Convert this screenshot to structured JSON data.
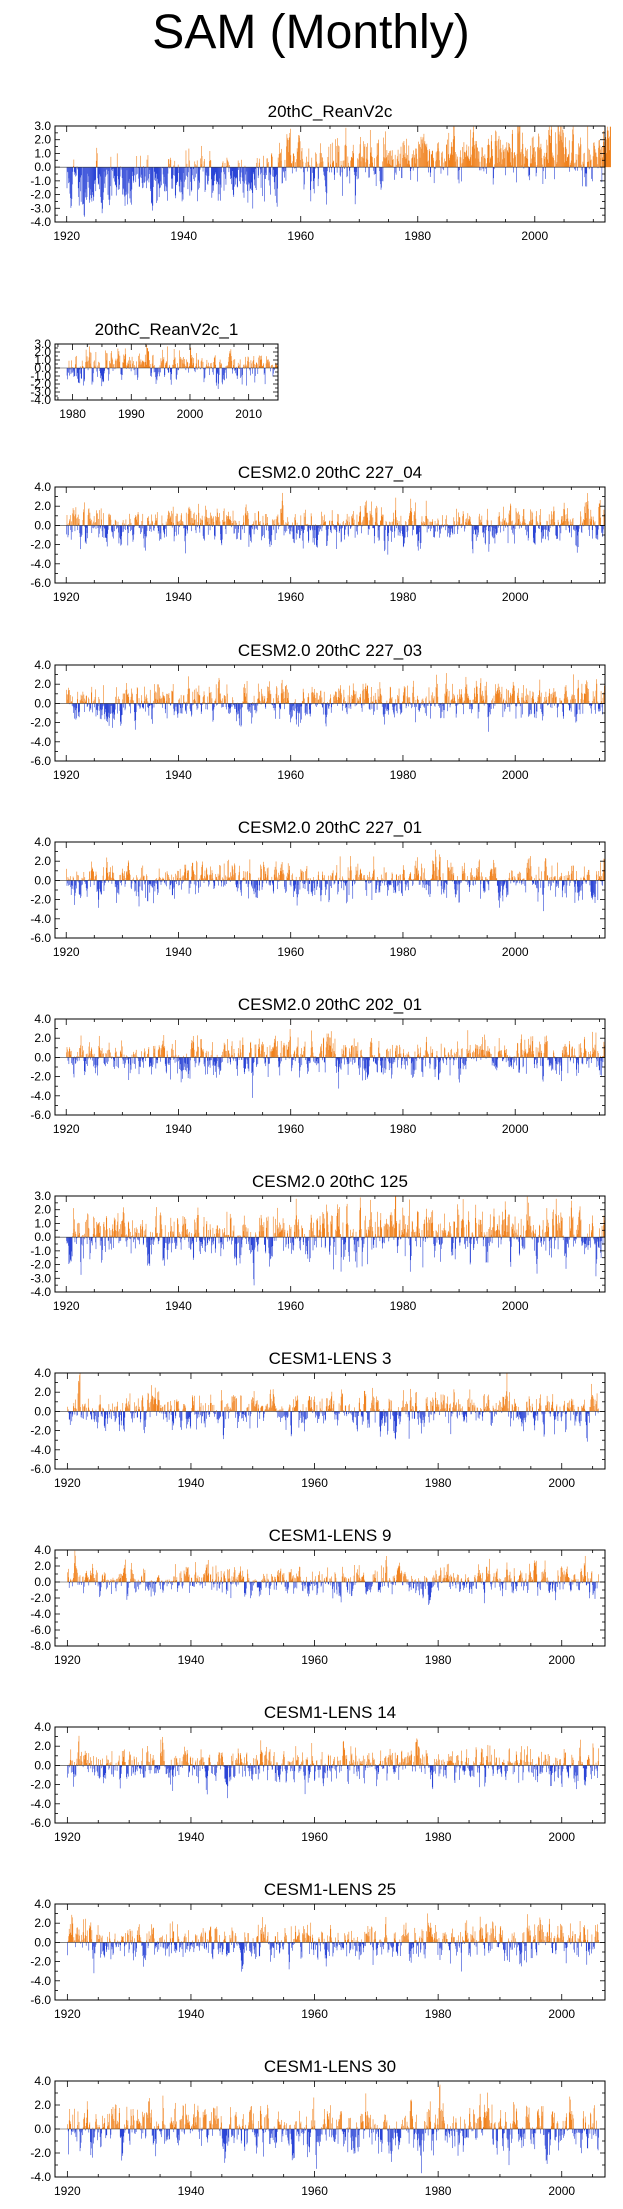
{
  "figure": {
    "title": "SAM (Monthly)"
  },
  "colors": {
    "positive": "#f0821e",
    "negative": "#2a44d6",
    "frame": "#000000"
  },
  "chart_data": [
    {
      "type": "bar",
      "title": "20thC_ReanV2c",
      "x_start": 1920,
      "x_end": 2012,
      "xticks": [
        1920,
        1940,
        1960,
        1980,
        2000
      ],
      "yticks": [
        3.0,
        2.0,
        1.0,
        0.0,
        -1.0,
        -2.0,
        -3.0,
        -4.0
      ],
      "ylim": [
        -4.0,
        3.0
      ],
      "pattern": "mostly negative (about -1 to -3) before 1955, mixed 1955-1975, mostly positive (about +1 to +2.5) after 1975",
      "trend": [
        [
          1920,
          -1.3
        ],
        [
          1935,
          -1.0
        ],
        [
          1950,
          -0.6
        ],
        [
          1958,
          0.2
        ],
        [
          1970,
          0.4
        ],
        [
          1980,
          0.8
        ],
        [
          1995,
          1.2
        ],
        [
          2012,
          1.1
        ]
      ],
      "seed": 11
    },
    {
      "type": "bar",
      "title": "20thC_ReanV2c_1",
      "x_start": 1979,
      "x_end": 2014,
      "xticks": [
        1980,
        1990,
        2000,
        2010
      ],
      "yticks": [
        3.0,
        2.0,
        1.0,
        0.0,
        -1.0,
        -2.0,
        -3.0,
        -4.0
      ],
      "ylim": [
        -4.0,
        3.0
      ],
      "pattern": "alternating positive and negative anomalies",
      "trend": [
        [
          1979,
          0.0
        ],
        [
          2014,
          0.2
        ]
      ],
      "seed": 23
    },
    {
      "type": "bar",
      "title": "CESM2.0 20thC 227_04",
      "x_start": 1920,
      "x_end": 2015,
      "xticks": [
        1920,
        1940,
        1960,
        1980,
        2000
      ],
      "yticks": [
        4.0,
        2.0,
        0.0,
        -2.0,
        -4.0,
        -6.0
      ],
      "ylim": [
        -6.0,
        4.0
      ],
      "pattern": "noisy anomalies around zero, largest negative near 1958 (about -5.5)",
      "trend": [
        [
          1920,
          0.0
        ],
        [
          2015,
          0.2
        ]
      ],
      "seed": 37
    },
    {
      "type": "bar",
      "title": "CESM2.0 20thC 227_03",
      "x_start": 1920,
      "x_end": 2015,
      "xticks": [
        1920,
        1940,
        1960,
        1980,
        2000
      ],
      "yticks": [
        4.0,
        2.0,
        0.0,
        -2.0,
        -4.0,
        -6.0
      ],
      "ylim": [
        -6.0,
        4.0
      ],
      "pattern": "noisy anomalies around zero, slightly more positive after 2000",
      "trend": [
        [
          1920,
          0.0
        ],
        [
          2015,
          0.3
        ]
      ],
      "seed": 41
    },
    {
      "type": "bar",
      "title": "CESM2.0 20thC 227_01",
      "x_start": 1920,
      "x_end": 2015,
      "xticks": [
        1920,
        1940,
        1960,
        1980,
        2000
      ],
      "yticks": [
        4.0,
        2.0,
        0.0,
        -2.0,
        -4.0,
        -6.0
      ],
      "ylim": [
        -6.0,
        4.0
      ],
      "pattern": "noisy anomalies around zero",
      "trend": [
        [
          1920,
          0.0
        ],
        [
          2015,
          0.1
        ]
      ],
      "seed": 53
    },
    {
      "type": "bar",
      "title": "CESM2.0 20thC 202_01",
      "x_start": 1920,
      "x_end": 2015,
      "xticks": [
        1920,
        1940,
        1960,
        1980,
        2000
      ],
      "yticks": [
        4.0,
        2.0,
        0.0,
        -2.0,
        -4.0,
        -6.0
      ],
      "ylim": [
        -6.0,
        4.0
      ],
      "pattern": "noisy anomalies around zero, negatives to about -4",
      "trend": [
        [
          1920,
          0.0
        ],
        [
          2015,
          0.1
        ]
      ],
      "seed": 61
    },
    {
      "type": "bar",
      "title": "CESM2.0 20thC 125",
      "x_start": 1920,
      "x_end": 2015,
      "xticks": [
        1920,
        1940,
        1960,
        1980,
        2000
      ],
      "yticks": [
        3.0,
        2.0,
        1.0,
        0.0,
        -1.0,
        -2.0,
        -3.0,
        -4.0
      ],
      "ylim": [
        -4.0,
        3.0
      ],
      "pattern": "noisy anomalies around zero, strong negatives near 1927 and 1950",
      "trend": [
        [
          1920,
          0.0
        ],
        [
          2015,
          0.2
        ]
      ],
      "seed": 71
    },
    {
      "type": "bar",
      "title": "CESM1-LENS 3",
      "x_start": 1920,
      "x_end": 2005,
      "xticks": [
        1920,
        1940,
        1960,
        1980,
        2000
      ],
      "yticks": [
        4.0,
        2.0,
        0.0,
        -2.0,
        -4.0,
        -6.0
      ],
      "ylim": [
        -6.0,
        4.0
      ],
      "pattern": "noisy anomalies around zero",
      "trend": [
        [
          1920,
          0.0
        ],
        [
          2005,
          0.1
        ]
      ],
      "seed": 83
    },
    {
      "type": "bar",
      "title": "CESM1-LENS 9",
      "x_start": 1920,
      "x_end": 2005,
      "xticks": [
        1920,
        1940,
        1960,
        1980,
        2000
      ],
      "yticks": [
        4.0,
        2.0,
        0.0,
        -2.0,
        -4.0,
        -6.0,
        -8.0
      ],
      "ylim": [
        -8.0,
        4.0
      ],
      "pattern": "noisy anomalies around zero, negative spike near 1922 (about -5.5)",
      "trend": [
        [
          1920,
          0.0
        ],
        [
          2005,
          0.2
        ]
      ],
      "seed": 97
    },
    {
      "type": "bar",
      "title": "CESM1-LENS 14",
      "x_start": 1920,
      "x_end": 2005,
      "xticks": [
        1920,
        1940,
        1960,
        1980,
        2000
      ],
      "yticks": [
        4.0,
        2.0,
        0.0,
        -2.0,
        -4.0,
        -6.0
      ],
      "ylim": [
        -6.0,
        4.0
      ],
      "pattern": "noisy anomalies around zero",
      "trend": [
        [
          1920,
          0.0
        ],
        [
          2005,
          0.1
        ]
      ],
      "seed": 101
    },
    {
      "type": "bar",
      "title": "CESM1-LENS 25",
      "x_start": 1920,
      "x_end": 2005,
      "xticks": [
        1920,
        1940,
        1960,
        1980,
        2000
      ],
      "yticks": [
        4.0,
        2.0,
        0.0,
        -2.0,
        -4.0,
        -6.0
      ],
      "ylim": [
        -6.0,
        4.0
      ],
      "pattern": "noisy anomalies around zero",
      "trend": [
        [
          1920,
          0.0
        ],
        [
          2005,
          0.1
        ]
      ],
      "seed": 113
    },
    {
      "type": "bar",
      "title": "CESM1-LENS 30",
      "x_start": 1920,
      "x_end": 2005,
      "xticks": [
        1920,
        1940,
        1960,
        1980,
        2000
      ],
      "yticks": [
        4.0,
        2.0,
        0.0,
        -2.0,
        -4.0
      ],
      "ylim": [
        -4.0,
        4.0
      ],
      "pattern": "noisy anomalies around zero",
      "trend": [
        [
          1920,
          0.0
        ],
        [
          2005,
          0.1
        ]
      ],
      "seed": 127
    }
  ]
}
